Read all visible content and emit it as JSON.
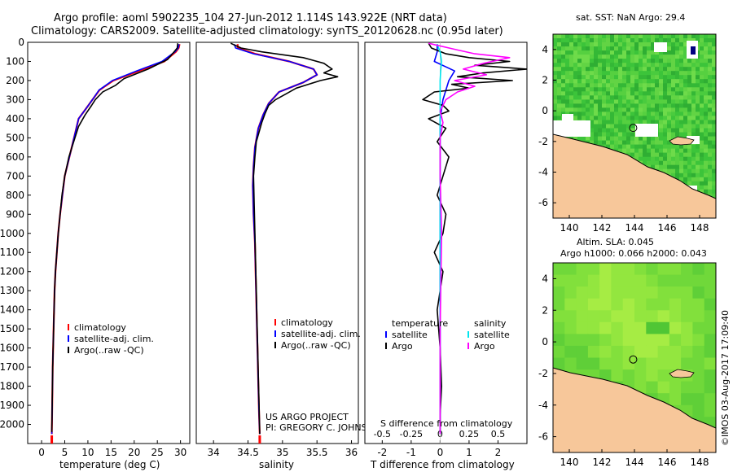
{
  "header": {
    "line1": "Argo profile: aoml 5902235_104 27-Jun-2012 1.114S 143.922E (NRT data)",
    "line2": "Climatology: CARS2009. Satellite-adjusted climatology: synTS_20120628.nc (0.95d later)"
  },
  "colors": {
    "climatology": "#ff0000",
    "satellite": "#0000ff",
    "argo": "#000000",
    "sal_satellite": "#00e5ee",
    "sal_argo": "#ff00ff",
    "land": "#f7c79a",
    "nodata": "#ffffff",
    "coast": "#000000"
  },
  "credit": {
    "project": "US ARGO PROJECT",
    "pi": "PI: GREGORY C. JOHNSON",
    "stamp": "©IMOS 03-Aug-2017 17:09:40"
  },
  "chart_data": [
    {
      "type": "line",
      "name": "temperature",
      "xlabel": "temperature (deg C)",
      "ylabel": "",
      "xlim": [
        -3,
        32
      ],
      "ylim": [
        2100,
        0
      ],
      "xticks": [
        "0",
        "5",
        "10",
        "15",
        "20",
        "25",
        "30"
      ],
      "xtick_values": [
        0,
        5,
        10,
        15,
        20,
        25,
        30
      ],
      "yticks": [
        "0",
        "100",
        "200",
        "300",
        "400",
        "500",
        "600",
        "700",
        "800",
        "900",
        "1000",
        "1100",
        "1200",
        "1300",
        "1400",
        "1500",
        "1600",
        "1700",
        "1800",
        "1900",
        "2000"
      ],
      "ytick_values": [
        0,
        100,
        200,
        300,
        400,
        500,
        600,
        700,
        800,
        900,
        1000,
        1100,
        1200,
        1300,
        1400,
        1500,
        1600,
        1700,
        1800,
        1900,
        2000
      ],
      "legend": [
        "climatology",
        "satellite-adj. clim.",
        "Argo(..raw -QC)"
      ],
      "series": [
        {
          "name": "climatology",
          "x": [
            29.8,
            29.6,
            29.0,
            26.5,
            21.0,
            15.5,
            12.5,
            11.0,
            9.5,
            8.0,
            7.0,
            6.0,
            5.0,
            4.5,
            4.0,
            3.6,
            3.3,
            3.0,
            2.8,
            2.6,
            2.4,
            2.3,
            2.2
          ],
          "y": [
            10,
            30,
            50,
            100,
            150,
            200,
            250,
            300,
            350,
            400,
            500,
            600,
            700,
            800,
            900,
            1000,
            1100,
            1200,
            1300,
            1500,
            1700,
            1900,
            2050
          ]
        },
        {
          "name": "satellite-adj. clim.",
          "x": [
            29.7,
            29.5,
            28.8,
            26.0,
            20.5,
            15.3,
            12.4,
            11.0,
            9.5,
            8.0,
            7.0,
            6.0,
            5.0,
            4.5,
            4.0,
            3.6,
            3.3,
            3.0,
            2.8,
            2.6,
            2.4,
            2.3,
            2.2
          ],
          "y": [
            10,
            30,
            50,
            100,
            150,
            200,
            250,
            300,
            350,
            400,
            500,
            600,
            700,
            800,
            900,
            1000,
            1100,
            1200,
            1300,
            1500,
            1700,
            1900,
            2050
          ]
        },
        {
          "name": "Argo(..raw -QC)",
          "x": [
            29.4,
            29.3,
            28.6,
            27.2,
            23.0,
            17.8,
            16.0,
            13.2,
            11.6,
            10.8,
            9.4,
            8.0,
            7.2,
            5.9,
            5.0,
            4.4,
            4.0,
            3.6,
            3.3,
            3.0,
            2.8,
            2.6,
            2.4,
            2.3,
            2.2
          ],
          "y": [
            5,
            30,
            50,
            90,
            140,
            190,
            225,
            260,
            300,
            330,
            380,
            440,
            500,
            600,
            700,
            800,
            900,
            1000,
            1100,
            1200,
            1300,
            1500,
            1700,
            1900,
            2040
          ]
        }
      ]
    },
    {
      "type": "line",
      "name": "salinity",
      "xlabel": "salinity",
      "xlim": [
        33.75,
        36.1
      ],
      "ylim": [
        2100,
        0
      ],
      "xticks": [
        "34",
        "34.5",
        "35",
        "35.5",
        "36"
      ],
      "xtick_values": [
        34,
        34.5,
        35,
        35.5,
        36
      ],
      "legend": [
        "climatology",
        "satellite-adj. clim.",
        "Argo(..raw -QC)"
      ],
      "series": [
        {
          "name": "climatology",
          "x": [
            34.35,
            34.35,
            34.6,
            35.1,
            35.45,
            35.5,
            35.3,
            34.95,
            34.8,
            34.72,
            34.65,
            34.6,
            34.58,
            34.57,
            34.58,
            34.6,
            34.61,
            34.62,
            34.63,
            34.64,
            34.65,
            34.66,
            34.67
          ],
          "y": [
            10,
            30,
            60,
            100,
            140,
            170,
            210,
            260,
            320,
            380,
            450,
            550,
            650,
            750,
            900,
            1050,
            1200,
            1350,
            1500,
            1650,
            1800,
            1950,
            2050
          ]
        },
        {
          "name": "satellite-adj. clim.",
          "x": [
            34.3,
            34.32,
            34.58,
            35.1,
            35.45,
            35.5,
            35.3,
            34.95,
            34.8,
            34.72,
            34.65,
            34.6,
            34.58,
            34.57,
            34.58,
            34.6,
            34.61,
            34.62,
            34.63,
            34.64,
            34.65,
            34.66,
            34.67
          ],
          "y": [
            10,
            30,
            60,
            100,
            140,
            170,
            210,
            260,
            320,
            380,
            450,
            550,
            650,
            750,
            900,
            1050,
            1200,
            1350,
            1500,
            1650,
            1800,
            1950,
            2050
          ]
        },
        {
          "name": "Argo(..raw -QC)",
          "x": [
            34.25,
            34.4,
            34.7,
            35.3,
            35.6,
            35.72,
            35.6,
            35.8,
            35.55,
            35.2,
            35.05,
            34.9,
            34.8,
            34.75,
            34.7,
            34.66,
            34.62,
            34.6,
            34.58,
            34.59,
            34.6,
            34.61,
            34.62,
            34.63,
            34.64,
            34.65,
            34.66,
            34.67
          ],
          "y": [
            5,
            30,
            50,
            80,
            110,
            140,
            160,
            180,
            200,
            240,
            270,
            300,
            330,
            370,
            420,
            470,
            520,
            600,
            700,
            850,
            1000,
            1150,
            1300,
            1450,
            1600,
            1750,
            1900,
            2050
          ]
        }
      ]
    },
    {
      "type": "line",
      "name": "difference from climatology",
      "xlabel": "T difference from climatology",
      "xlabel2": "S difference from climatology",
      "xlim": [
        -2.6,
        3.0
      ],
      "ylim": [
        2100,
        0
      ],
      "xticks": [
        "-2",
        "-1",
        "0",
        "1",
        "2"
      ],
      "xtick_values": [
        -2,
        -1,
        0,
        1,
        2
      ],
      "xticks2": [
        "-0.5",
        "-0.25",
        "0",
        "0.25",
        "0.5"
      ],
      "xtick2_values": [
        -0.5,
        -0.25,
        0,
        0.25,
        0.5
      ],
      "legend_headers": [
        "temperature",
        "salinity"
      ],
      "legend": [
        "satellite",
        "Argo",
        "satellite",
        "Argo"
      ],
      "series": [
        {
          "name": "temperature satellite",
          "x": [
            -0.1,
            -0.1,
            -0.2,
            0.5,
            0.3,
            0.2,
            0.1,
            0.05,
            0.0,
            0.0,
            0.0,
            0.0,
            0.0,
            0.0,
            0.0,
            0.0,
            0.0
          ],
          "y": [
            10,
            50,
            100,
            150,
            200,
            250,
            300,
            350,
            400,
            500,
            600,
            800,
            1000,
            1200,
            1500,
            1800,
            2050
          ]
        },
        {
          "name": "temperature Argo",
          "x": [
            -0.4,
            -0.3,
            0.2,
            1.0,
            2.4,
            1.2,
            3.0,
            1.5,
            0.6,
            2.5,
            0.4,
            1.0,
            -0.2,
            -0.6,
            0.1,
            0.3,
            -0.4,
            0.2,
            -0.1,
            0.3,
            0.1,
            -0.1,
            0.2,
            0.1,
            -0.2,
            0.1,
            0.0,
            -0.1,
            0.0,
            0.05,
            0.0,
            0.0
          ],
          "y": [
            5,
            30,
            60,
            80,
            100,
            120,
            140,
            160,
            180,
            200,
            220,
            240,
            260,
            300,
            330,
            360,
            400,
            450,
            520,
            600,
            700,
            800,
            900,
            1000,
            1100,
            1200,
            1300,
            1400,
            1600,
            1800,
            1950,
            2050
          ]
        },
        {
          "name": "salinity satellite",
          "x": [
            -0.1,
            0.0,
            0.05,
            0.02,
            0.0,
            0.0,
            0.0,
            0.0,
            0.0,
            0.0,
            0.0,
            0.0,
            0.0
          ],
          "y": [
            10,
            50,
            100,
            150,
            200,
            300,
            400,
            600,
            800,
            1000,
            1400,
            1800,
            2050
          ]
        },
        {
          "name": "salinity Argo",
          "x": [
            -0.4,
            0.6,
            1.2,
            2.4,
            1.5,
            0.8,
            1.6,
            0.5,
            1.2,
            0.6,
            0.2,
            0.0,
            0.1,
            0.0,
            0.0,
            0.05,
            0.0,
            0.0
          ],
          "y": [
            5,
            40,
            60,
            80,
            110,
            140,
            170,
            200,
            230,
            260,
            300,
            360,
            420,
            500,
            700,
            1000,
            1500,
            2050
          ]
        }
      ]
    },
    {
      "type": "heatmap",
      "name": "sst map",
      "title": "sat. SST: NaN Argo: 29.4",
      "xlim": [
        139,
        149
      ],
      "ylim": [
        -7,
        5
      ],
      "xticks": [
        "140",
        "142",
        "144",
        "146",
        "148"
      ],
      "xtick_values": [
        140,
        142,
        144,
        146,
        148
      ],
      "yticks": [
        "-6",
        "-4",
        "-2",
        "0",
        "2",
        "4"
      ],
      "ytick_values": [
        -6,
        -4,
        -2,
        0,
        2,
        4
      ],
      "marker": {
        "lon": 143.922,
        "lat": -1.114
      }
    },
    {
      "type": "heatmap",
      "name": "sla map",
      "title": "Altim. SLA: 0.045",
      "subtitle": "Argo h1000: 0.066 h2000: 0.043",
      "xlim": [
        139,
        149
      ],
      "ylim": [
        -7,
        5
      ],
      "xticks": [
        "140",
        "142",
        "144",
        "146",
        "148"
      ],
      "xtick_values": [
        140,
        142,
        144,
        146,
        148
      ],
      "yticks": [
        "-6",
        "-4",
        "-2",
        "0",
        "2",
        "4"
      ],
      "ytick_values": [
        -6,
        -4,
        -2,
        0,
        2,
        4
      ],
      "marker": {
        "lon": 143.922,
        "lat": -1.114
      }
    }
  ]
}
